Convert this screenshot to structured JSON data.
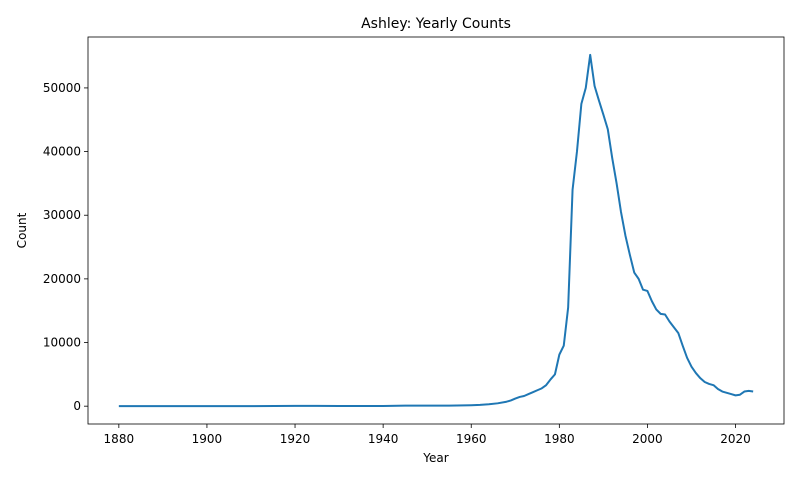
{
  "chart_data": {
    "type": "line",
    "title": "Ashley: Yearly Counts",
    "xlabel": "Year",
    "ylabel": "Count",
    "xlim": [
      1873,
      2031
    ],
    "ylim": [
      -2800,
      58000
    ],
    "x_ticks": [
      1880,
      1900,
      1920,
      1940,
      1960,
      1980,
      2000,
      2020
    ],
    "y_ticks": [
      0,
      10000,
      20000,
      30000,
      40000,
      50000
    ],
    "grid": false,
    "legend": "none",
    "colors": {
      "line": "#1f77b4",
      "axis": "#000000",
      "background": "#ffffff"
    },
    "series": [
      {
        "x": [
          1880,
          1890,
          1900,
          1910,
          1920,
          1925,
          1930,
          1935,
          1940,
          1945,
          1950,
          1955,
          1960,
          1962,
          1964,
          1966,
          1968,
          1969,
          1970,
          1971,
          1972,
          1973,
          1974,
          1975,
          1976,
          1977,
          1978,
          1979,
          1980,
          1981,
          1982,
          1983,
          1984,
          1985,
          1986,
          1987,
          1988,
          1989,
          1990,
          1991,
          1992,
          1993,
          1994,
          1995,
          1996,
          1997,
          1998,
          1999,
          2000,
          2001,
          2002,
          2003,
          2004,
          2005,
          2006,
          2007,
          2008,
          2009,
          2010,
          2011,
          2012,
          2013,
          2014,
          2015,
          2016,
          2017,
          2018,
          2019,
          2020,
          2021,
          2022,
          2023,
          2024
        ],
        "y": [
          0,
          0,
          0,
          0,
          50,
          50,
          20,
          20,
          20,
          80,
          80,
          80,
          150,
          200,
          300,
          450,
          700,
          900,
          1200,
          1450,
          1600,
          1900,
          2200,
          2500,
          2800,
          3300,
          4200,
          5000,
          8100,
          9500,
          15500,
          34000,
          40000,
          47500,
          50000,
          55200,
          50300,
          48000,
          45800,
          43500,
          39000,
          35000,
          30500,
          26800,
          23800,
          21000,
          20000,
          18300,
          18100,
          16500,
          15200,
          14500,
          14400,
          13300,
          12400,
          11500,
          9500,
          7600,
          6200,
          5200,
          4400,
          3800,
          3500,
          3300,
          2700,
          2300,
          2100,
          1900,
          1700,
          1800,
          2300,
          2400,
          2300
        ]
      }
    ]
  }
}
